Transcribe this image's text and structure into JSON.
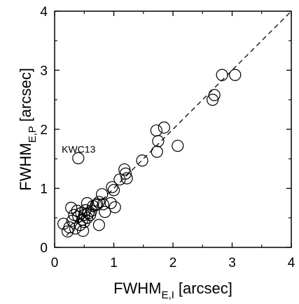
{
  "chart_data": {
    "type": "scatter",
    "title": "",
    "xlabel": "FWHM",
    "xlabel_subscript": "E,I",
    "xlabel_unit": "[arcsec]",
    "ylabel": "FWHM",
    "ylabel_subscript": "E,P",
    "ylabel_unit": "[arcsec]",
    "xlim": [
      0,
      4
    ],
    "ylim": [
      0,
      4
    ],
    "x_ticks": [
      0,
      1,
      2,
      3,
      4
    ],
    "y_ticks": [
      0,
      1,
      2,
      3,
      4
    ],
    "x_tick_labels": [
      "0",
      "1",
      "2",
      "3",
      "4"
    ],
    "y_tick_labels": [
      "0",
      "1",
      "2",
      "3",
      "4"
    ],
    "grid": false,
    "marker": "open-circle",
    "reference_line": {
      "style": "dashed",
      "from": [
        0.2,
        0.2
      ],
      "to": [
        4.0,
        4.0
      ]
    },
    "annotations": [
      {
        "text": "KWC13",
        "x": 0.12,
        "y": 1.66
      }
    ],
    "series": [
      {
        "points": [
          [
            0.15,
            0.4
          ],
          [
            0.22,
            0.27
          ],
          [
            0.25,
            0.34
          ],
          [
            0.28,
            0.67
          ],
          [
            0.3,
            0.45
          ],
          [
            0.33,
            0.55
          ],
          [
            0.35,
            0.32
          ],
          [
            0.38,
            0.62
          ],
          [
            0.4,
            0.52
          ],
          [
            0.4,
            1.51
          ],
          [
            0.43,
            0.38
          ],
          [
            0.45,
            0.58
          ],
          [
            0.47,
            0.47
          ],
          [
            0.48,
            0.28
          ],
          [
            0.5,
            0.55
          ],
          [
            0.5,
            0.43
          ],
          [
            0.52,
            0.63
          ],
          [
            0.55,
            0.5
          ],
          [
            0.55,
            0.75
          ],
          [
            0.57,
            0.58
          ],
          [
            0.6,
            0.55
          ],
          [
            0.62,
            0.62
          ],
          [
            0.65,
            0.7
          ],
          [
            0.7,
            0.72
          ],
          [
            0.72,
            0.73
          ],
          [
            0.75,
            0.77
          ],
          [
            0.75,
            0.38
          ],
          [
            0.8,
            0.9
          ],
          [
            0.82,
            0.73
          ],
          [
            0.85,
            0.6
          ],
          [
            0.95,
            0.75
          ],
          [
            0.97,
            1.02
          ],
          [
            1.0,
            0.97
          ],
          [
            1.02,
            0.68
          ],
          [
            1.1,
            1.15
          ],
          [
            1.18,
            1.32
          ],
          [
            1.2,
            1.25
          ],
          [
            1.22,
            1.17
          ],
          [
            1.48,
            1.47
          ],
          [
            1.72,
            1.98
          ],
          [
            1.73,
            1.62
          ],
          [
            1.75,
            1.8
          ],
          [
            1.85,
            2.03
          ],
          [
            2.08,
            1.72
          ],
          [
            2.67,
            2.5
          ],
          [
            2.7,
            2.58
          ],
          [
            2.83,
            2.92
          ],
          [
            3.05,
            2.92
          ]
        ]
      }
    ]
  }
}
